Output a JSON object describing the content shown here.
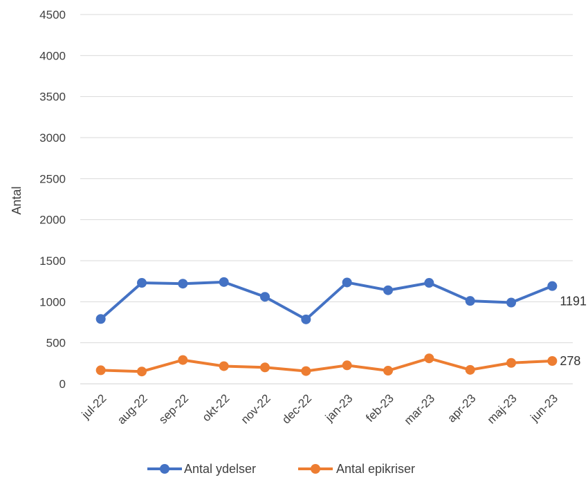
{
  "chart_data": {
    "type": "line",
    "title": "",
    "xlabel": "",
    "ylabel": "Antal",
    "ylim": [
      0,
      4500
    ],
    "yticks": [
      0,
      500,
      1000,
      1500,
      2000,
      2500,
      3000,
      3500,
      4000,
      4500
    ],
    "grid": true,
    "legend_position": "bottom",
    "categories": [
      "jul-22",
      "aug-22",
      "sep-22",
      "okt-22",
      "nov-22",
      "dec-22",
      "jan-23",
      "feb-23",
      "mar-23",
      "apr-23",
      "maj-23",
      "jun-23"
    ],
    "series": [
      {
        "name": "Antal ydelser",
        "color": "#4472C4",
        "values": [
          790,
          1230,
          1220,
          1240,
          1060,
          785,
          1235,
          1140,
          1230,
          1010,
          990,
          1191
        ],
        "end_label": "1191"
      },
      {
        "name": "Antal epikriser",
        "color": "#ED7D31",
        "values": [
          165,
          150,
          290,
          215,
          200,
          155,
          225,
          160,
          310,
          170,
          255,
          278
        ],
        "end_label": "278"
      }
    ]
  }
}
